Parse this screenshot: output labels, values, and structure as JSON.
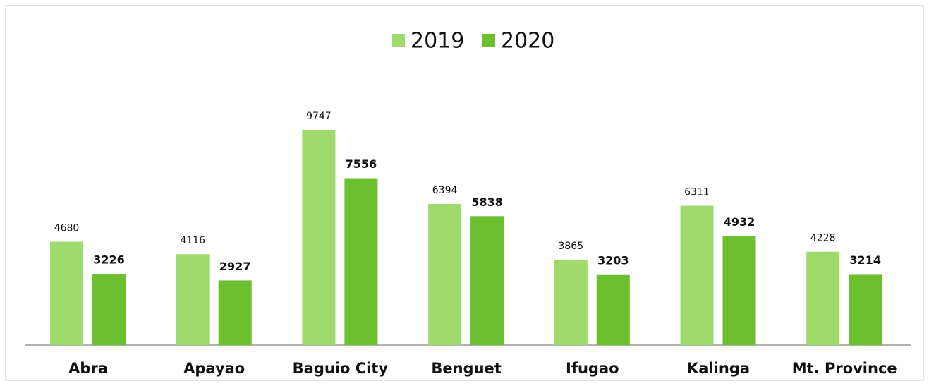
{
  "chart_data": {
    "type": "bar",
    "categories": [
      "Abra",
      "Apayao",
      "Baguio City",
      "Benguet",
      "Ifugao",
      "Kalinga",
      "Mt. Province"
    ],
    "series": [
      {
        "name": "2019",
        "color": "#9edb6c",
        "values": [
          4680,
          4116,
          9747,
          6394,
          3865,
          6311,
          4228
        ]
      },
      {
        "name": "2020",
        "color": "#6cbf2f",
        "values": [
          3226,
          2927,
          7556,
          5838,
          3203,
          4932,
          3214
        ]
      }
    ],
    "legend": "top"
  }
}
